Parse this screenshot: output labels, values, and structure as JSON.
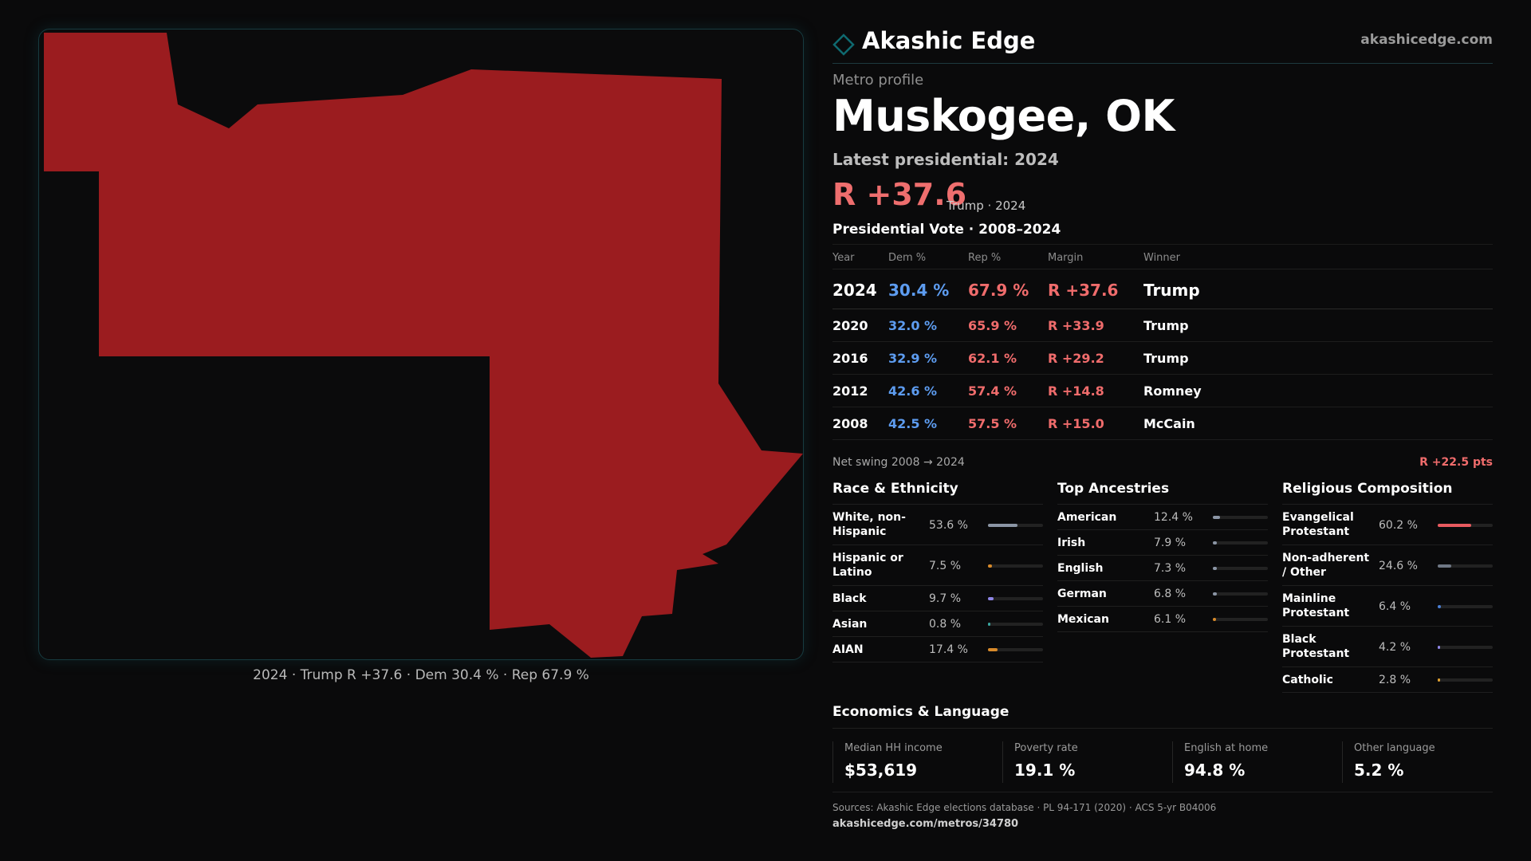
{
  "brand": {
    "name": "Akashic Edge",
    "url": "akashicedge.com",
    "accent": "#0f5f63"
  },
  "map": {
    "fill_color": "#9b1c1f",
    "caption": "2024 · Trump R +37.6 · Dem 30.4 % · Rep 67.9 %"
  },
  "profile": {
    "kicker": "Metro profile",
    "title": "Muskogee, OK",
    "latest_label": "Latest presidential: 2024",
    "margin": "R +37.6",
    "margin_sub": "Trump · 2024"
  },
  "vote_table": {
    "title": "Presidential Vote · 2008–2024",
    "headers": {
      "year": "Year",
      "dem": "Dem %",
      "rep": "Rep %",
      "margin": "Margin",
      "winner": "Winner"
    },
    "rows": [
      {
        "year": "2024",
        "dem": "30.4 %",
        "rep": "67.9 %",
        "margin": "R +37.6",
        "winner": "Trump"
      },
      {
        "year": "2020",
        "dem": "32.0 %",
        "rep": "65.9 %",
        "margin": "R +33.9",
        "winner": "Trump"
      },
      {
        "year": "2016",
        "dem": "32.9 %",
        "rep": "62.1 %",
        "margin": "R +29.2",
        "winner": "Trump"
      },
      {
        "year": "2012",
        "dem": "42.6 %",
        "rep": "57.4 %",
        "margin": "R +14.8",
        "winner": "Romney"
      },
      {
        "year": "2008",
        "dem": "42.5 %",
        "rep": "57.5 %",
        "margin": "R +15.0",
        "winner": "McCain"
      }
    ]
  },
  "swing": {
    "label": "Net swing 2008 → 2024",
    "value": "R +22.5 pts"
  },
  "race": {
    "title": "Race & Ethnicity",
    "rows": [
      {
        "label": "White, non-Hispanic",
        "pct": "53.6 %",
        "value": 53.6,
        "color": "#8b95a5"
      },
      {
        "label": "Hispanic or Latino",
        "pct": "7.5 %",
        "value": 7.5,
        "color": "#d88a2a"
      },
      {
        "label": "Black",
        "pct": "9.7 %",
        "value": 9.7,
        "color": "#8f86e8"
      },
      {
        "label": "Asian",
        "pct": "0.8 %",
        "value": 0.8,
        "color": "#3aa6a0"
      },
      {
        "label": "AIAN",
        "pct": "17.4 %",
        "value": 17.4,
        "color": "#d88a2a"
      }
    ]
  },
  "ancestry": {
    "title": "Top Ancestries",
    "rows": [
      {
        "label": "American",
        "pct": "12.4 %",
        "value": 12.4,
        "color": "#8b95a5"
      },
      {
        "label": "Irish",
        "pct": "7.9 %",
        "value": 7.9,
        "color": "#8b95a5"
      },
      {
        "label": "English",
        "pct": "7.3 %",
        "value": 7.3,
        "color": "#8b95a5"
      },
      {
        "label": "German",
        "pct": "6.8 %",
        "value": 6.8,
        "color": "#8b95a5"
      },
      {
        "label": "Mexican",
        "pct": "6.1 %",
        "value": 6.1,
        "color": "#d88a2a"
      }
    ]
  },
  "religion": {
    "title": "Religious Composition",
    "rows": [
      {
        "label": "Evangelical Protestant",
        "pct": "60.2 %",
        "value": 60.2,
        "color": "#e85a5f"
      },
      {
        "label": "Non-adherent / Other",
        "pct": "24.6 %",
        "value": 24.6,
        "color": "#6f7885"
      },
      {
        "label": "Mainline Protestant",
        "pct": "6.4 %",
        "value": 6.4,
        "color": "#4a7fd6"
      },
      {
        "label": "Black Protestant",
        "pct": "4.2 %",
        "value": 4.2,
        "color": "#8f86e8"
      },
      {
        "label": "Catholic",
        "pct": "2.8 %",
        "value": 2.8,
        "color": "#e0a030"
      }
    ]
  },
  "economics": {
    "title": "Economics & Language",
    "items": [
      {
        "label": "Median HH income",
        "value": "$53,619"
      },
      {
        "label": "Poverty rate",
        "value": "19.1 %"
      },
      {
        "label": "English at home",
        "value": "94.8 %"
      },
      {
        "label": "Other language",
        "value": "5.2 %"
      }
    ]
  },
  "footer": {
    "sources": "Sources: Akashic Edge elections database · PL 94-171 (2020) · ACS 5-yr B04006",
    "url": "akashicedge.com/metros/34780"
  }
}
